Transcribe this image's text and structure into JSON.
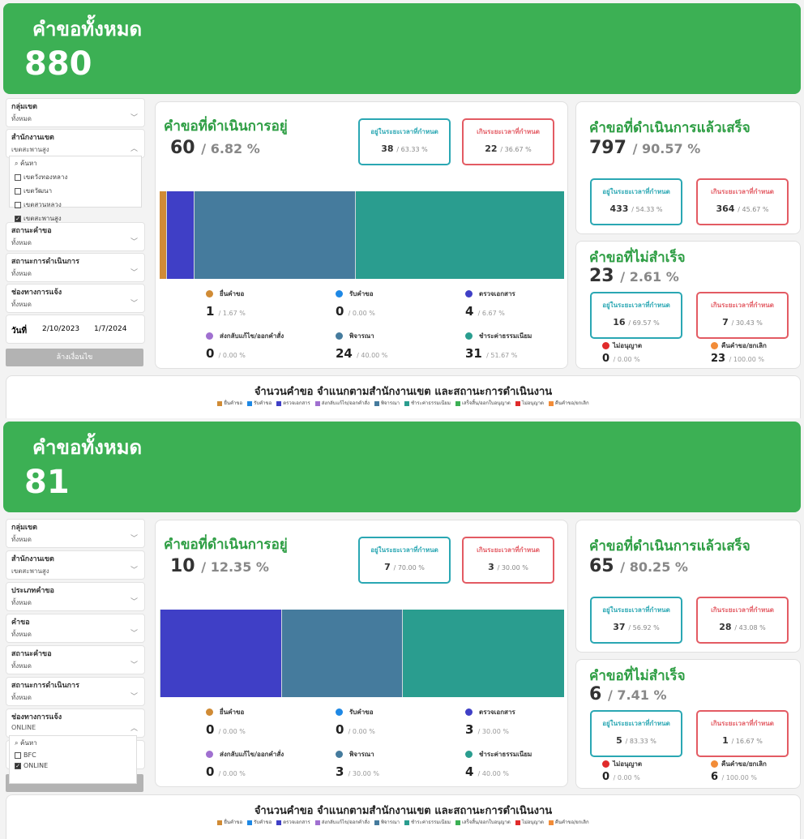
{
  "status_colors": {
    "submit": "#d08b35",
    "receive": "#1e88e5",
    "check": "#3f3fc6",
    "return": "#a070d0",
    "consider": "#457b9d",
    "fee": "#2a9d8f",
    "done": "#3cb054",
    "denied": "#e02b2b",
    "cancel": "#f28c38"
  },
  "labels": {
    "total": "คำขอทั้งหมด",
    "in_progress": "คำขอที่ดำเนินการอยู่",
    "completed": "คำขอที่ดำเนินการแล้วเสร็จ",
    "failed": "คำขอที่ไม่สำเร็จ",
    "within": "อยู่ในระยะเวลาที่กำหนด",
    "over": "เกินระยะเวลาที่กำหนด",
    "chart_title": "จำนวนคำขอ  จำแนกตามสำนักงานเขต และสถานะการดำเนินงาน",
    "date": "วันที่",
    "clear": "ล้างเงื่อนไข",
    "search": "ค้นหา"
  },
  "legend": [
    "ยื่นคำขอ",
    "รับคำขอ",
    "ตรวจเอกสาร",
    "ส่งกลับแก้ไข/ออกคำสั่ง",
    "พิจารณา",
    "ชำระค่าธรรมเนียม",
    "เสร็จสิ้น/ออกใบอนุญาต",
    "ไม่อนุญาต",
    "คืนคำขอ/ยกเลิก"
  ],
  "panels": [
    {
      "total": "880",
      "filters": [
        {
          "label": "กลุ่มเขต",
          "value": "ทั้งหมด"
        },
        {
          "label": "สำนักงานเขต",
          "value": "เขตสะพานสูง",
          "open": true,
          "options": [
            {
              "label": "เขตวังทองหลาง",
              "checked": false
            },
            {
              "label": "เขตวัฒนา",
              "checked": false
            },
            {
              "label": "เขตสวนหลวง",
              "checked": false
            },
            {
              "label": "เขตสะพานสูง",
              "checked": true
            }
          ]
        },
        {
          "label": "สถานะคำขอ",
          "value": "ทั้งหมด"
        },
        {
          "label": "สถานะการดำเนินการ",
          "value": "ทั้งหมด"
        },
        {
          "label": "ช่องทางการแจ้ง",
          "value": "ทั้งหมด"
        }
      ],
      "date_from": "2/10/2023",
      "date_to": "1/7/2024",
      "in_progress": {
        "count": "60",
        "pct": "/ 6.82 %",
        "within": "38",
        "within_pct": "/ 63.33 %",
        "over": "22",
        "over_pct": "/ 36.67 %",
        "stages": [
          {
            "label": "ยื่นคำขอ",
            "count": "1",
            "pct": "/ 1.67 %"
          },
          {
            "label": "รับคำขอ",
            "count": "0",
            "pct": "/ 0.00 %"
          },
          {
            "label": "ตรวจเอกสาร",
            "count": "4",
            "pct": "/ 6.67 %"
          },
          {
            "label": "ส่งกลับแก้ไข/ออกคำสั่ง",
            "count": "0",
            "pct": "/ 0.00 %"
          },
          {
            "label": "พิจารณา",
            "count": "24",
            "pct": "/ 40.00 %"
          },
          {
            "label": "ชำระค่าธรรมเนียม",
            "count": "31",
            "pct": "/ 51.67 %"
          }
        ]
      },
      "completed": {
        "count": "797",
        "pct": "/ 90.57 %",
        "within": "433",
        "within_pct": "/ 54.33 %",
        "over": "364",
        "over_pct": "/ 45.67 %"
      },
      "failed": {
        "count": "23",
        "pct": "/ 2.61 %",
        "within": "16",
        "within_pct": "/ 69.57 %",
        "over": "7",
        "over_pct": "/ 30.43 %",
        "denied_label": "ไม่อนุญาต",
        "denied": "0",
        "denied_pct": "/ 0.00 %",
        "cancel_label": "คืนคำขอ/ยกเลิก",
        "cancel": "23",
        "cancel_pct": "/ 100.00 %"
      }
    },
    {
      "total": "81",
      "filters": [
        {
          "label": "กลุ่มเขต",
          "value": "ทั้งหมด"
        },
        {
          "label": "สำนักงานเขต",
          "value": "เขตสะพานสูง"
        },
        {
          "label": "ประเภทคำขอ",
          "value": "ทั้งหมด"
        },
        {
          "label": "คำขอ",
          "value": "ทั้งหมด"
        },
        {
          "label": "สถานะคำขอ",
          "value": "ทั้งหมด"
        },
        {
          "label": "สถานะการดำเนินการ",
          "value": "ทั้งหมด"
        },
        {
          "label": "ช่องทางการแจ้ง",
          "value": "ONLINE",
          "open": true,
          "options": [
            {
              "label": "BFC",
              "checked": false
            },
            {
              "label": "ONLINE",
              "checked": true
            }
          ]
        }
      ],
      "in_progress": {
        "count": "10",
        "pct": "/ 12.35 %",
        "within": "7",
        "within_pct": "/ 70.00 %",
        "over": "3",
        "over_pct": "/ 30.00 %",
        "stages": [
          {
            "label": "ยื่นคำขอ",
            "count": "0",
            "pct": "/ 0.00 %"
          },
          {
            "label": "รับคำขอ",
            "count": "0",
            "pct": "/ 0.00 %"
          },
          {
            "label": "ตรวจเอกสาร",
            "count": "3",
            "pct": "/ 30.00 %"
          },
          {
            "label": "ส่งกลับแก้ไข/ออกคำสั่ง",
            "count": "0",
            "pct": "/ 0.00 %"
          },
          {
            "label": "พิจารณา",
            "count": "3",
            "pct": "/ 30.00 %"
          },
          {
            "label": "ชำระค่าธรรมเนียม",
            "count": "4",
            "pct": "/ 40.00 %"
          }
        ]
      },
      "completed": {
        "count": "65",
        "pct": "/ 80.25 %",
        "within": "37",
        "within_pct": "/ 56.92 %",
        "over": "28",
        "over_pct": "/ 43.08 %"
      },
      "failed": {
        "count": "6",
        "pct": "/ 7.41 %",
        "within": "5",
        "within_pct": "/ 83.33 %",
        "over": "1",
        "over_pct": "/ 16.67 %",
        "denied_label": "ไม่อนุญาต",
        "denied": "0",
        "denied_pct": "/ 0.00 %",
        "cancel_label": "คืนคำขอ/ยกเลิก",
        "cancel": "6",
        "cancel_pct": "/ 100.00 %"
      }
    }
  ]
}
